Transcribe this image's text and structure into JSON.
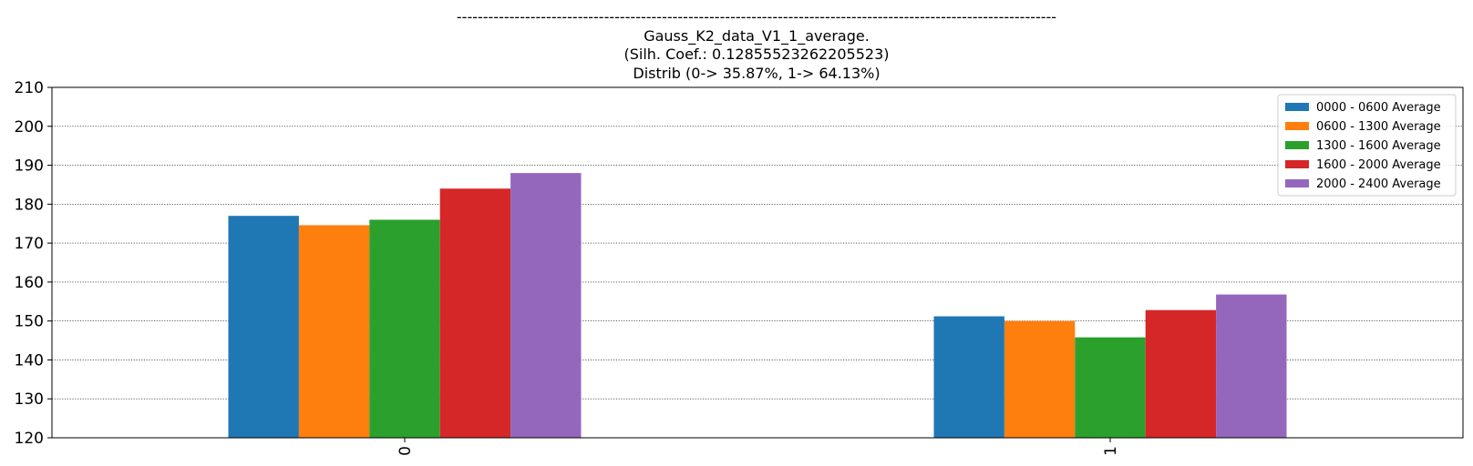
{
  "chart_data": {
    "type": "bar",
    "title_lines": [
      "------------------------------------------------------------------------------------------------------------------",
      "Gauss_K2_data_V1_1_average.",
      "(Silh. Coef.: 0.12855523262205523)",
      "Distrib (0-> 35.87%, 1-> 64.13%)"
    ],
    "xlabel": "",
    "ylabel": "",
    "categories": [
      "0",
      "1"
    ],
    "ylim": [
      120,
      210
    ],
    "yticks": [
      120,
      130,
      140,
      150,
      160,
      170,
      180,
      190,
      200,
      210
    ],
    "grid": true,
    "legend_position": "top-right",
    "series": [
      {
        "name": "0000 - 0600 Average",
        "color": "#1f77b4",
        "values": [
          177.0,
          151.2
        ]
      },
      {
        "name": "0600 - 1300 Average",
        "color": "#ff7f0e",
        "values": [
          174.6,
          150.0
        ]
      },
      {
        "name": "1300 - 1600 Average",
        "color": "#2ca02c",
        "values": [
          176.0,
          145.8
        ]
      },
      {
        "name": "1600 - 2000 Average",
        "color": "#d62728",
        "values": [
          184.0,
          152.8
        ]
      },
      {
        "name": "2000 - 2400 Average",
        "color": "#9467bd",
        "values": [
          188.0,
          156.8
        ]
      }
    ]
  }
}
